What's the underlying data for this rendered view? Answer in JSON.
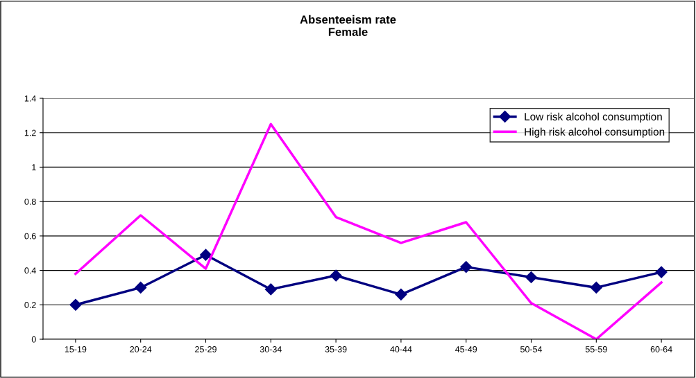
{
  "chart_data": {
    "type": "line",
    "title": "Absenteeism rate\nFemale",
    "categories": [
      "15-19",
      "20-24",
      "25-29",
      "30-34",
      "35-39",
      "40-44",
      "45-49",
      "50-54",
      "55-59",
      "60-64"
    ],
    "series": [
      {
        "name": "Low risk alcohol consumption",
        "color": "#000080",
        "marker": "diamond",
        "values": [
          0.2,
          0.3,
          0.49,
          0.29,
          0.37,
          0.26,
          0.42,
          0.36,
          0.3,
          0.39
        ]
      },
      {
        "name": "High risk alcohol consumption",
        "color": "#ff00ff",
        "marker": "none",
        "values": [
          0.38,
          0.72,
          0.41,
          1.25,
          0.71,
          0.56,
          0.68,
          0.21,
          0.0,
          0.33
        ]
      }
    ],
    "ylim": [
      0,
      1.4
    ],
    "yticks": [
      0,
      0.2,
      0.4,
      0.6,
      0.8,
      1,
      1.2,
      1.4
    ],
    "grid": "y",
    "legend": "top right"
  }
}
